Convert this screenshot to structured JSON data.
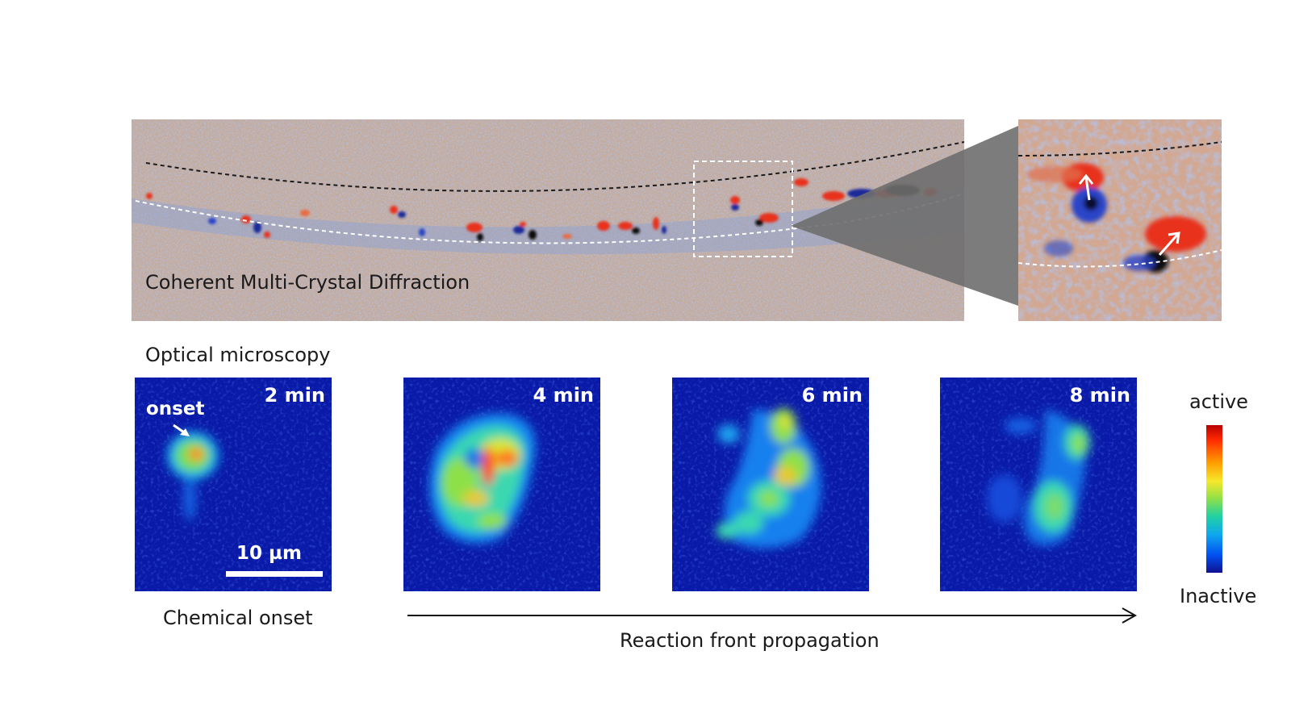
{
  "diffraction": {
    "label": "Coherent Multi-Crystal Diffraction",
    "colors": {
      "background": "#b9a9a0",
      "positive": "#e8321e",
      "negative": "#2a44c8",
      "guide_dark": "#222222",
      "guide_light": "#ffffff"
    }
  },
  "optical": {
    "label": "Optical microscopy",
    "frames": [
      {
        "time": "2 min",
        "extent": 0.25
      },
      {
        "time": "4 min",
        "extent": 1.0
      },
      {
        "time": "6 min",
        "extent": 0.8
      },
      {
        "time": "8 min",
        "extent": 0.55
      }
    ],
    "onset_label": "onset",
    "scale_bar_label": "10 µm",
    "caption_onset": "Chemical onset",
    "caption_propagation": "Reaction front propagation"
  },
  "colorbar": {
    "top_label": "active",
    "bottom_label": "Inactive"
  }
}
